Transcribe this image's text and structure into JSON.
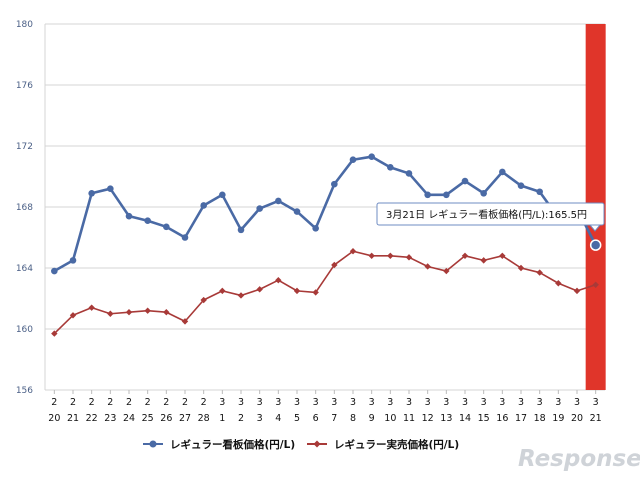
{
  "chart_data": {
    "type": "line",
    "categories": [
      [
        "2",
        "20"
      ],
      [
        "2",
        "21"
      ],
      [
        "2",
        "22"
      ],
      [
        "2",
        "23"
      ],
      [
        "2",
        "24"
      ],
      [
        "2",
        "25"
      ],
      [
        "2",
        "26"
      ],
      [
        "2",
        "27"
      ],
      [
        "2",
        "28"
      ],
      [
        "3",
        "1"
      ],
      [
        "3",
        "2"
      ],
      [
        "3",
        "3"
      ],
      [
        "3",
        "4"
      ],
      [
        "3",
        "5"
      ],
      [
        "3",
        "6"
      ],
      [
        "3",
        "7"
      ],
      [
        "3",
        "8"
      ],
      [
        "3",
        "9"
      ],
      [
        "3",
        "10"
      ],
      [
        "3",
        "11"
      ],
      [
        "3",
        "12"
      ],
      [
        "3",
        "13"
      ],
      [
        "3",
        "14"
      ],
      [
        "3",
        "15"
      ],
      [
        "3",
        "16"
      ],
      [
        "3",
        "17"
      ],
      [
        "3",
        "18"
      ],
      [
        "3",
        "19"
      ],
      [
        "3",
        "20"
      ],
      [
        "3",
        "21"
      ]
    ],
    "series": [
      {
        "name": "レギュラー看板価格(円/L)",
        "color": "#4a6aa5",
        "marker": "circle",
        "values": [
          163.8,
          164.5,
          168.9,
          169.2,
          167.4,
          167.1,
          166.7,
          166.0,
          168.1,
          168.8,
          166.5,
          167.9,
          168.4,
          167.7,
          166.6,
          169.5,
          171.1,
          171.3,
          170.6,
          170.2,
          168.8,
          168.8,
          169.7,
          168.9,
          170.3,
          169.4,
          169.0,
          167.3,
          167.9,
          165.5
        ]
      },
      {
        "name": "レギュラー実売価格(円/L)",
        "color": "#a83a38",
        "marker": "diamond",
        "values": [
          159.7,
          160.9,
          161.4,
          161.0,
          161.1,
          161.2,
          161.1,
          160.5,
          161.9,
          162.5,
          162.2,
          162.6,
          163.2,
          162.5,
          162.4,
          164.2,
          165.1,
          164.8,
          164.8,
          164.7,
          164.1,
          163.8,
          164.8,
          164.5,
          164.8,
          164.0,
          163.7,
          163.0,
          162.5,
          162.9
        ]
      }
    ],
    "y_ticks": [
      "156",
      "160",
      "164",
      "168",
      "172",
      "176",
      "180"
    ],
    "ylim": [
      156,
      180
    ],
    "grid": true,
    "legend_position": "bottom",
    "highlight_index": 29,
    "highlight_color": "#e0352a",
    "tooltip": "3月21日 レギュラー看板価格(円/L):165.5円"
  },
  "watermark": "Response."
}
